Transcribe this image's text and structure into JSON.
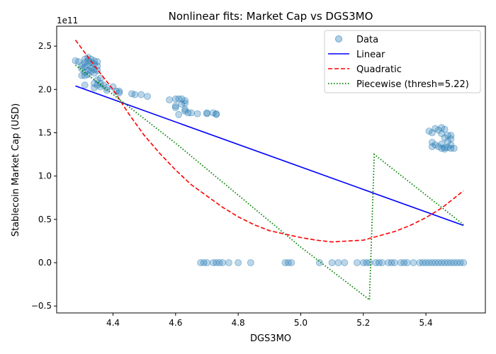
{
  "chart_data": {
    "type": "scatter",
    "title": "Nonlinear fits: Market Cap vs DGS3MO",
    "xlabel": "DGS3MO",
    "ylabel": "Stablecoin Market Cap (USD)",
    "y_offset_label": "1e11",
    "xlim": [
      4.22,
      5.59
    ],
    "ylim": [
      -0.58,
      2.73
    ],
    "x_ticks": [
      4.2,
      4.4,
      4.6,
      4.8,
      5.0,
      5.2,
      5.4
    ],
    "x_tick_labels": [
      "4.2",
      "4.4",
      "4.6",
      "4.8",
      "5.0",
      "5.2",
      "5.4"
    ],
    "y_ticks": [
      -0.5,
      0.0,
      0.5,
      1.0,
      1.5,
      2.0,
      2.5
    ],
    "y_tick_labels": [
      "−0.5",
      "0.0",
      "0.5",
      "1.0",
      "1.5",
      "2.0",
      "2.5"
    ],
    "grid": false,
    "legend_position": "top-right",
    "colors": {
      "data": "#1f77b4",
      "linear": "#0000ff",
      "quadratic": "#ff0000",
      "piecewise": "#008000"
    },
    "series": [
      {
        "name": "Data",
        "kind": "scatter",
        "points": [
          [
            4.28,
            2.33
          ],
          [
            4.29,
            2.32
          ],
          [
            4.3,
            2.28
          ],
          [
            4.3,
            2.24
          ],
          [
            4.3,
            2.16
          ],
          [
            4.31,
            2.35
          ],
          [
            4.31,
            2.31
          ],
          [
            4.31,
            2.26
          ],
          [
            4.31,
            2.2
          ],
          [
            4.31,
            2.16
          ],
          [
            4.31,
            2.05
          ],
          [
            4.32,
            2.37
          ],
          [
            4.32,
            2.33
          ],
          [
            4.32,
            2.28
          ],
          [
            4.32,
            2.22
          ],
          [
            4.32,
            2.17
          ],
          [
            4.33,
            2.35
          ],
          [
            4.33,
            2.31
          ],
          [
            4.33,
            2.25
          ],
          [
            4.33,
            2.21
          ],
          [
            4.34,
            2.33
          ],
          [
            4.34,
            2.29
          ],
          [
            4.34,
            2.23
          ],
          [
            4.34,
            2.19
          ],
          [
            4.34,
            2.07
          ],
          [
            4.34,
            2.02
          ],
          [
            4.35,
            2.32
          ],
          [
            4.35,
            2.27
          ],
          [
            4.35,
            2.22
          ],
          [
            4.35,
            2.11
          ],
          [
            4.35,
            2.05
          ],
          [
            4.36,
            2.13
          ],
          [
            4.36,
            2.07
          ],
          [
            4.36,
            2.03
          ],
          [
            4.37,
            2.05
          ],
          [
            4.38,
            2.02
          ],
          [
            4.38,
            1.99
          ],
          [
            4.4,
            2.03
          ],
          [
            4.41,
            1.98
          ],
          [
            4.42,
            1.98
          ],
          [
            4.42,
            1.96
          ],
          [
            4.46,
            1.95
          ],
          [
            4.47,
            1.94
          ],
          [
            4.49,
            1.94
          ],
          [
            4.51,
            1.92
          ],
          [
            4.58,
            1.88
          ],
          [
            4.6,
            1.89
          ],
          [
            4.6,
            1.81
          ],
          [
            4.6,
            1.79
          ],
          [
            4.61,
            1.89
          ],
          [
            4.61,
            1.71
          ],
          [
            4.62,
            1.89
          ],
          [
            4.62,
            1.83
          ],
          [
            4.63,
            1.87
          ],
          [
            4.63,
            1.84
          ],
          [
            4.63,
            1.77
          ],
          [
            4.63,
            1.75
          ],
          [
            4.64,
            1.73
          ],
          [
            4.65,
            1.73
          ],
          [
            4.67,
            1.72
          ],
          [
            4.7,
            1.73
          ],
          [
            4.7,
            1.72
          ],
          [
            4.72,
            1.73
          ],
          [
            4.73,
            1.72
          ],
          [
            4.73,
            1.71
          ],
          [
            4.68,
            0.0
          ],
          [
            4.69,
            0.0
          ],
          [
            4.7,
            0.0
          ],
          [
            4.72,
            0.0
          ],
          [
            4.73,
            0.0
          ],
          [
            4.74,
            0.0
          ],
          [
            4.75,
            0.0
          ],
          [
            4.77,
            0.0
          ],
          [
            4.8,
            0.0
          ],
          [
            4.84,
            0.0
          ],
          [
            4.95,
            0.0
          ],
          [
            4.96,
            0.0
          ],
          [
            4.97,
            0.0
          ],
          [
            5.06,
            0.0
          ],
          [
            5.1,
            0.0
          ],
          [
            5.12,
            0.0
          ],
          [
            5.14,
            0.0
          ],
          [
            5.18,
            0.0
          ],
          [
            5.2,
            0.0
          ],
          [
            5.21,
            0.0
          ],
          [
            5.22,
            0.0
          ],
          [
            5.24,
            0.0
          ],
          [
            5.25,
            0.0
          ],
          [
            5.26,
            0.0
          ],
          [
            5.28,
            0.0
          ],
          [
            5.29,
            0.0
          ],
          [
            5.3,
            0.0
          ],
          [
            5.32,
            0.0
          ],
          [
            5.33,
            0.0
          ],
          [
            5.34,
            0.0
          ],
          [
            5.36,
            0.0
          ],
          [
            5.38,
            0.0
          ],
          [
            5.39,
            0.0
          ],
          [
            5.4,
            0.0
          ],
          [
            5.41,
            0.0
          ],
          [
            5.42,
            0.0
          ],
          [
            5.43,
            0.0
          ],
          [
            5.44,
            0.0
          ],
          [
            5.45,
            0.0
          ],
          [
            5.46,
            0.0
          ],
          [
            5.47,
            0.0
          ],
          [
            5.48,
            0.0
          ],
          [
            5.49,
            0.0
          ],
          [
            5.5,
            0.0
          ],
          [
            5.51,
            0.0
          ],
          [
            5.52,
            0.0
          ],
          [
            5.41,
            1.52
          ],
          [
            5.42,
            1.5
          ],
          [
            5.42,
            1.39
          ],
          [
            5.42,
            1.34
          ],
          [
            5.43,
            1.55
          ],
          [
            5.43,
            1.36
          ],
          [
            5.44,
            1.53
          ],
          [
            5.44,
            1.34
          ],
          [
            5.45,
            1.56
          ],
          [
            5.45,
            1.49
          ],
          [
            5.45,
            1.37
          ],
          [
            5.45,
            1.32
          ],
          [
            5.46,
            1.54
          ],
          [
            5.46,
            1.44
          ],
          [
            5.46,
            1.33
          ],
          [
            5.46,
            1.31
          ],
          [
            5.47,
            1.47
          ],
          [
            5.47,
            1.4
          ],
          [
            5.47,
            1.33
          ],
          [
            5.48,
            1.47
          ],
          [
            5.48,
            1.43
          ],
          [
            5.48,
            1.36
          ],
          [
            5.48,
            1.32
          ],
          [
            5.49,
            1.32
          ]
        ]
      },
      {
        "name": "Linear",
        "kind": "line",
        "style": "solid",
        "points": [
          [
            4.28,
            2.04
          ],
          [
            5.52,
            0.43
          ]
        ]
      },
      {
        "name": "Quadratic",
        "kind": "line",
        "style": "dashed",
        "points": [
          [
            4.28,
            2.57
          ],
          [
            4.35,
            2.23
          ],
          [
            4.4,
            2.0
          ],
          [
            4.45,
            1.72
          ],
          [
            4.5,
            1.47
          ],
          [
            4.55,
            1.26
          ],
          [
            4.6,
            1.07
          ],
          [
            4.65,
            0.9
          ],
          [
            4.7,
            0.77
          ],
          [
            4.75,
            0.64
          ],
          [
            4.8,
            0.53
          ],
          [
            4.85,
            0.44
          ],
          [
            4.9,
            0.37
          ],
          [
            4.95,
            0.33
          ],
          [
            5.0,
            0.29
          ],
          [
            5.05,
            0.26
          ],
          [
            5.1,
            0.24
          ],
          [
            5.15,
            0.25
          ],
          [
            5.2,
            0.26
          ],
          [
            5.25,
            0.31
          ],
          [
            5.3,
            0.36
          ],
          [
            5.35,
            0.43
          ],
          [
            5.4,
            0.52
          ],
          [
            5.45,
            0.63
          ],
          [
            5.52,
            0.83
          ]
        ]
      },
      {
        "name": "Piecewise (thresh=5.22)",
        "kind": "line",
        "style": "dotted",
        "points": [
          [
            4.28,
            2.28
          ],
          [
            4.6,
            1.38
          ],
          [
            5.0,
            0.18
          ],
          [
            5.22,
            -0.43
          ],
          [
            5.22,
            -0.38
          ],
          [
            5.235,
            1.25
          ],
          [
            5.52,
            0.44
          ]
        ]
      }
    ]
  }
}
